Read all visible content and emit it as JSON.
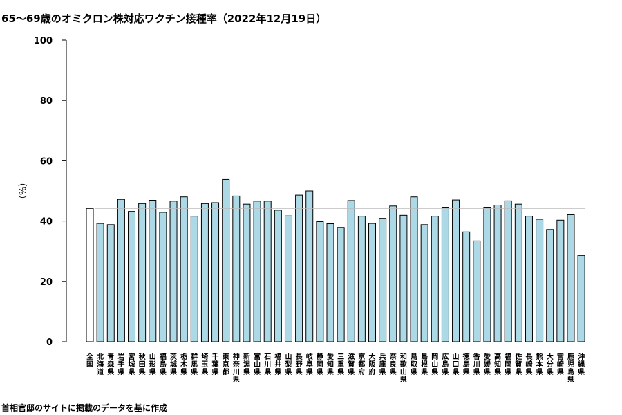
{
  "chart_data": {
    "type": "bar",
    "title": "65〜69歳のオミクロン株対応ワクチン接種率（2022年12月19日）",
    "ylabel": "（%）",
    "source": "首相官邸のサイトに掲載のデータを基に作成",
    "ylim": [
      0,
      100
    ],
    "yticks": [
      0,
      20,
      40,
      60,
      80,
      100
    ],
    "reference_line": 44.2,
    "grid": false,
    "colors": {
      "national": "#ffffff",
      "prefecture": "#add8e6",
      "outline": "#000000",
      "reference": "#bbbbbb"
    },
    "categories": [
      "全国",
      "北海道",
      "青森県",
      "岩手県",
      "宮城県",
      "秋田県",
      "山形県",
      "福島県",
      "茨城県",
      "栃木県",
      "群馬県",
      "埼玉県",
      "千葉県",
      "東京都",
      "神奈川県",
      "新潟県",
      "富山県",
      "石川県",
      "福井県",
      "山梨県",
      "長野県",
      "岐阜県",
      "静岡県",
      "愛知県",
      "三重県",
      "滋賀県",
      "京都府",
      "大阪府",
      "兵庫県",
      "奈良県",
      "和歌山県",
      "鳥取県",
      "島根県",
      "岡山県",
      "広島県",
      "山口県",
      "徳島県",
      "香川県",
      "愛媛県",
      "高知県",
      "福岡県",
      "佐賀県",
      "長崎県",
      "熊本県",
      "大分県",
      "宮崎県",
      "鹿児島県",
      "沖縄県"
    ],
    "values": [
      44.2,
      39.2,
      38.8,
      47.2,
      43.2,
      45.8,
      46.9,
      42.9,
      46.6,
      48.0,
      41.6,
      45.8,
      46.1,
      53.8,
      48.3,
      45.6,
      46.6,
      46.6,
      43.6,
      41.7,
      48.6,
      50.0,
      39.8,
      39.1,
      37.9,
      46.8,
      41.6,
      39.2,
      40.9,
      45.0,
      41.9,
      48.0,
      38.8,
      41.6,
      44.6,
      47.0,
      36.4,
      33.4,
      44.6,
      45.3,
      46.7,
      45.6,
      41.6,
      40.6,
      37.2,
      40.3,
      42.1,
      28.6
    ]
  }
}
